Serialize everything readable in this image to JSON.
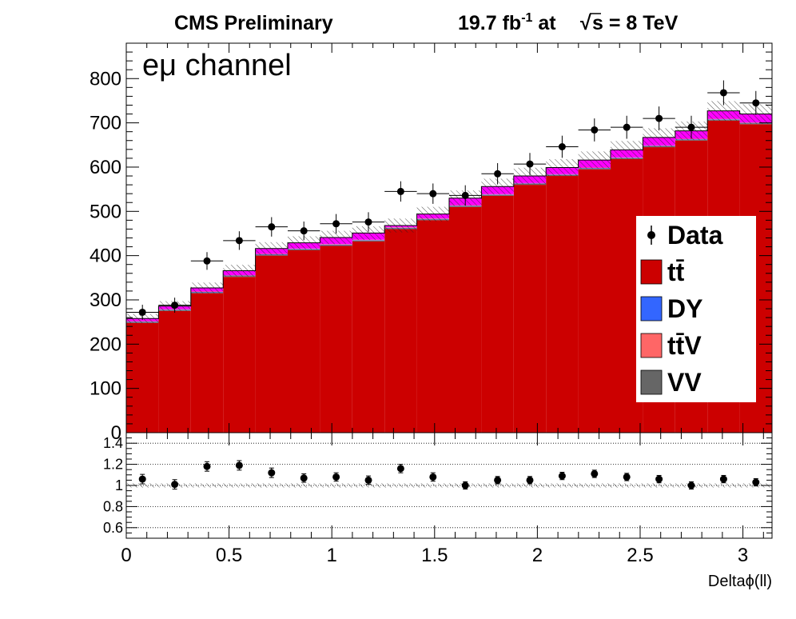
{
  "header": {
    "left": "CMS Preliminary",
    "lumi_value": "19.7 fb",
    "lumi_exp": "-1",
    "lumi_at": " at",
    "sqrt_sym": "√",
    "energy": "s = 8 TeV"
  },
  "channel_label": "eμ channel",
  "legend": {
    "items": [
      {
        "key": "data",
        "label": "Data",
        "color": "#000000"
      },
      {
        "key": "ttbar",
        "label": "tt̄",
        "color": "#cc0000"
      },
      {
        "key": "dy",
        "label": "DY",
        "color": "#3366ff"
      },
      {
        "key": "ttv",
        "label": "tt̄V",
        "color": "#ff6666"
      },
      {
        "key": "vv",
        "label": "VV",
        "color": "#666666"
      }
    ]
  },
  "colors": {
    "ttbar": "#cc0000",
    "dy": "#3366ff",
    "ttv": "#ff6666",
    "vv": "#666666",
    "single_top": "#ff00ff"
  },
  "chart_data": {
    "type": "bar",
    "stacked": true,
    "xlabel": "Deltaϕ(ll)",
    "xlim": [
      0,
      3.1416
    ],
    "ylim": [
      0,
      880
    ],
    "ratio_ylim": [
      0.5,
      1.5
    ],
    "x_ticks": [
      0,
      0.5,
      1,
      1.5,
      2,
      2.5,
      3
    ],
    "x_tick_labels": [
      "0",
      "0.5",
      "1",
      "1.5",
      "2",
      "2.5",
      "3"
    ],
    "y_ticks": [
      0,
      100,
      200,
      300,
      400,
      500,
      600,
      700,
      800
    ],
    "y_tick_labels": [
      "0",
      "100",
      "200",
      "300",
      "400",
      "500",
      "600",
      "700",
      "800"
    ],
    "ratio_ticks": [
      0.6,
      0.8,
      1.0,
      1.2,
      1.4
    ],
    "ratio_tick_labels": [
      "0.6",
      "0.8",
      "1",
      "1.2",
      "1.4"
    ],
    "bin_edges": [
      0,
      0.1571,
      0.3142,
      0.4712,
      0.6283,
      0.7854,
      0.9425,
      1.0996,
      1.2566,
      1.4137,
      1.5708,
      1.7279,
      1.885,
      2.042,
      2.1991,
      2.3562,
      2.5133,
      2.6704,
      2.8274,
      2.9845,
      3.1416
    ],
    "series": [
      {
        "name": "tt̄",
        "key": "ttbar",
        "values": [
          248,
          275,
          315,
          352,
          400,
          412,
          422,
          432,
          460,
          480,
          510,
          535,
          560,
          580,
          595,
          618,
          645,
          660,
          705,
          697
        ]
      },
      {
        "name": "VV",
        "key": "vv",
        "values": [
          2,
          2,
          2,
          2,
          2,
          2,
          2,
          2,
          2,
          2,
          2,
          2,
          2,
          2,
          2,
          2,
          2,
          2,
          2,
          2
        ]
      },
      {
        "name": "DY",
        "key": "dy",
        "values": [
          1,
          1,
          1,
          1,
          1,
          1,
          1,
          1,
          1,
          1,
          1,
          1,
          1,
          1,
          1,
          1,
          1,
          1,
          1,
          1
        ]
      },
      {
        "name": "tt̄V",
        "key": "ttv",
        "values": [
          1,
          1,
          1,
          1,
          1,
          1,
          1,
          1,
          1,
          1,
          1,
          1,
          1,
          1,
          1,
          1,
          1,
          1,
          1,
          1
        ]
      },
      {
        "key": "single_top",
        "values": [
          6,
          7,
          8,
          10,
          12,
          13,
          15,
          15,
          4,
          10,
          16,
          17,
          16,
          15,
          17,
          17,
          18,
          18,
          18,
          19
        ]
      }
    ],
    "data_points": {
      "name": "Data",
      "values": [
        272,
        288,
        388,
        434,
        465,
        456,
        472,
        476,
        545,
        540,
        536,
        585,
        607,
        646,
        684,
        690,
        710,
        690,
        768,
        745
      ],
      "errors": [
        17,
        17,
        20,
        21,
        22,
        21,
        22,
        22,
        23,
        23,
        23,
        24,
        25,
        25,
        26,
        26,
        27,
        26,
        28,
        27
      ]
    },
    "ratio": {
      "values": [
        1.06,
        1.01,
        1.18,
        1.19,
        1.12,
        1.07,
        1.08,
        1.05,
        1.16,
        1.08,
        1.0,
        1.05,
        1.05,
        1.09,
        1.11,
        1.08,
        1.06,
        1.0,
        1.06,
        1.03
      ],
      "errors": [
        0.045,
        0.045,
        0.045,
        0.045,
        0.045,
        0.04,
        0.04,
        0.04,
        0.04,
        0.04,
        0.035,
        0.035,
        0.035,
        0.035,
        0.035,
        0.035,
        0.035,
        0.035,
        0.035,
        0.035
      ]
    },
    "grid": {
      "main": false,
      "ratio_horizontal": true
    },
    "legend_position": "right"
  }
}
